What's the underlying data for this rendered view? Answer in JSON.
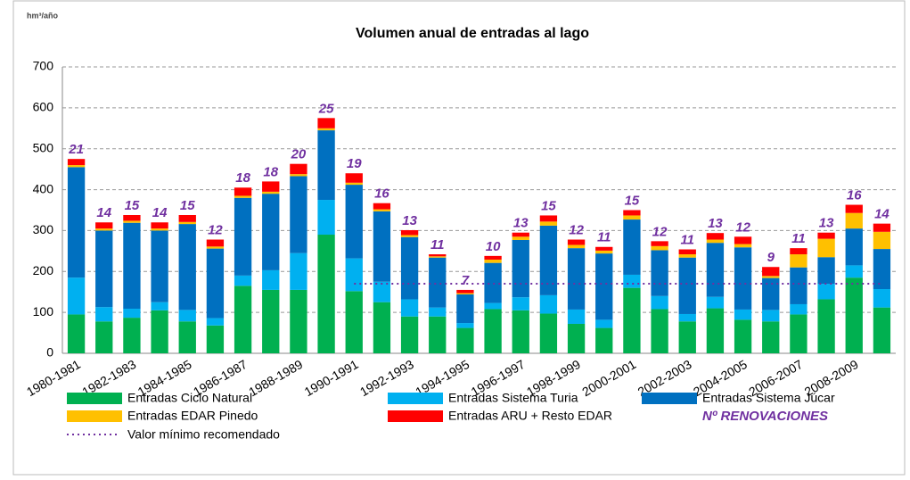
{
  "chart_data": {
    "type": "stacked-bar",
    "title": "Volumen anual de entradas al lago",
    "y_unit_label": "hm³/año",
    "categories": [
      "1980-1981",
      null,
      "1982-1983",
      null,
      "1984-1985",
      null,
      "1986-1987",
      null,
      "1988-1989",
      null,
      "1990-1991",
      null,
      "1992-1993",
      null,
      "1994-1995",
      null,
      "1996-1997",
      null,
      "1998-1999",
      null,
      "2000-2001",
      null,
      "2002-2003",
      null,
      "2004-2005",
      null,
      "2006-2007",
      null,
      "2008-2009",
      null
    ],
    "series": [
      {
        "name": "Entradas Ciclo Natural",
        "color": "#00b050",
        "values": [
          95,
          78,
          87,
          105,
          78,
          68,
          165,
          155,
          155,
          290,
          152,
          125,
          90,
          90,
          62,
          108,
          105,
          97,
          72,
          62,
          160,
          108,
          78,
          110,
          82,
          78,
          95,
          132,
          185,
          112
        ]
      },
      {
        "name": "Entradas Sistema Turia",
        "color": "#00b0f0",
        "values": [
          90,
          35,
          22,
          20,
          28,
          18,
          25,
          48,
          90,
          85,
          80,
          50,
          42,
          22,
          12,
          15,
          32,
          45,
          35,
          20,
          32,
          32,
          18,
          28,
          25,
          28,
          25,
          38,
          30,
          45
        ]
      },
      {
        "name": "Entradas Sistema Júcar",
        "color": "#0070c0",
        "values": [
          270,
          187,
          210,
          175,
          210,
          170,
          190,
          187,
          188,
          170,
          180,
          172,
          152,
          122,
          70,
          98,
          140,
          170,
          150,
          162,
          135,
          112,
          138,
          132,
          152,
          78,
          90,
          65,
          90,
          98
        ]
      },
      {
        "name": "Entradas EDAR Pinedo",
        "color": "#ffc000",
        "values": [
          5,
          5,
          5,
          5,
          5,
          5,
          5,
          5,
          5,
          5,
          5,
          5,
          5,
          3,
          3,
          8,
          8,
          10,
          8,
          7,
          10,
          10,
          8,
          8,
          8,
          5,
          32,
          45,
          38,
          42
        ]
      },
      {
        "name": "Entradas ARU + Resto EDAR",
        "color": "#ff0000",
        "values": [
          15,
          15,
          14,
          15,
          17,
          17,
          20,
          25,
          25,
          25,
          23,
          15,
          12,
          5,
          8,
          9,
          10,
          15,
          13,
          9,
          13,
          12,
          12,
          16,
          18,
          22,
          15,
          15,
          20,
          20
        ]
      }
    ],
    "threshold": {
      "name": "Valor mínimo recomendado",
      "color": "#7030a0",
      "values": [
        null,
        null,
        null,
        null,
        null,
        null,
        null,
        null,
        null,
        null,
        170,
        170,
        170,
        170,
        170,
        170,
        170,
        170,
        170,
        170,
        170,
        170,
        170,
        170,
        170,
        170,
        170,
        170,
        170,
        170
      ]
    },
    "renovations": {
      "name": "Nº RENOVACIONES",
      "color": "#7030a0",
      "values": [
        21,
        14,
        15,
        14,
        15,
        12,
        18,
        18,
        20,
        25,
        19,
        16,
        13,
        11,
        7,
        10,
        13,
        15,
        12,
        11,
        15,
        12,
        11,
        13,
        12,
        9,
        11,
        13,
        16,
        14
      ]
    },
    "ylim": [
      0,
      700
    ],
    "yticks": [
      0,
      100,
      200,
      300,
      400,
      500,
      600,
      700
    ],
    "grid": true
  }
}
